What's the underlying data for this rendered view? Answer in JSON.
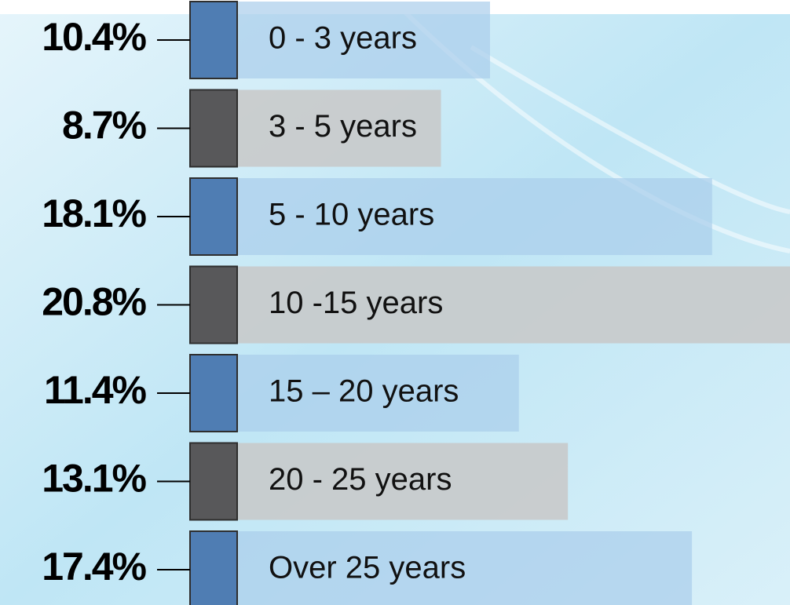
{
  "chart_data": {
    "type": "bar",
    "categories": [
      "0 - 3 years",
      "3 - 5 years",
      "5 - 10 years",
      "10 -15 years",
      "15 – 20 years",
      "20 - 25 years",
      "Over 25 years"
    ],
    "values": [
      10.4,
      8.7,
      18.1,
      20.8,
      11.4,
      13.1,
      17.4
    ],
    "value_labels": [
      "10.4%",
      "8.7%",
      "18.1%",
      "20.8%",
      "11.4%",
      "13.1%",
      "17.4%"
    ],
    "colors": [
      "#4f7db3",
      "#58585a",
      "#4f7db3",
      "#58585a",
      "#4f7db3",
      "#58585a",
      "#4f7db3"
    ]
  }
}
